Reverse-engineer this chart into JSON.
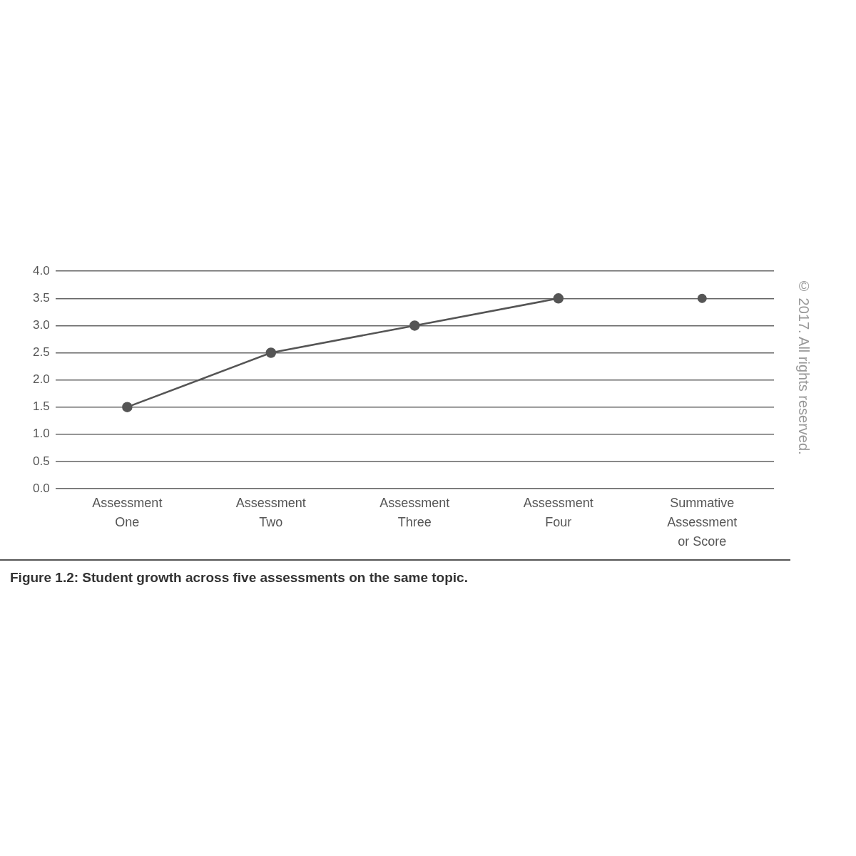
{
  "chart_data": {
    "type": "line",
    "title": "Figure 1.2: Student growth across five assessments on the same topic.",
    "annotations": [
      "© 2017. All rights reserved."
    ],
    "categories": [
      "Assessment One",
      "Assessment Two",
      "Assessment Three",
      "Assessment Four",
      "Summative Assessment or Score"
    ],
    "series": [
      {
        "color": "#555555",
        "values": [
          1.5,
          2.5,
          3.0,
          3.5,
          null
        ]
      },
      {
        "type": "scatter",
        "color": "#555555",
        "values": [
          null,
          null,
          null,
          null,
          3.5
        ]
      }
    ],
    "ylim": [
      0,
      4
    ],
    "yticks": [
      {
        "value": 0,
        "label": "0.0"
      },
      {
        "value": 0.5,
        "label": "0.5"
      },
      {
        "value": 1,
        "label": "1.0"
      },
      {
        "value": 1.5,
        "label": "1.5"
      },
      {
        "value": 2,
        "label": "2.0"
      },
      {
        "value": 2.5,
        "label": "2.5"
      },
      {
        "value": 3,
        "label": "3.0"
      },
      {
        "value": 3.5,
        "label": "3.5"
      },
      {
        "value": 4,
        "label": "4.0"
      }
    ],
    "grid": "y",
    "legend": false,
    "marker": "circle",
    "line_style": "solid"
  }
}
